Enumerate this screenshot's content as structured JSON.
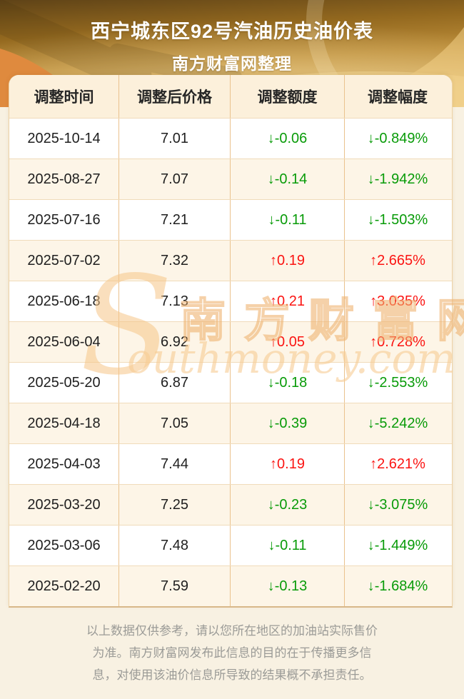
{
  "header": {
    "title": "西宁城东区92号汽油历史油价表",
    "subtitle": "南方财富网整理"
  },
  "table": {
    "columns": [
      "调整时间",
      "调整后价格",
      "调整额度",
      "调整幅度"
    ],
    "rows": [
      {
        "date": "2025-10-14",
        "price": "7.01",
        "change": "↓-0.06",
        "percent": "↓-0.849%",
        "direction": "down"
      },
      {
        "date": "2025-08-27",
        "price": "7.07",
        "change": "↓-0.14",
        "percent": "↓-1.942%",
        "direction": "down"
      },
      {
        "date": "2025-07-16",
        "price": "7.21",
        "change": "↓-0.11",
        "percent": "↓-1.503%",
        "direction": "down"
      },
      {
        "date": "2025-07-02",
        "price": "7.32",
        "change": "↑0.19",
        "percent": "↑2.665%",
        "direction": "up"
      },
      {
        "date": "2025-06-18",
        "price": "7.13",
        "change": "↑0.21",
        "percent": "↑3.035%",
        "direction": "up"
      },
      {
        "date": "2025-06-04",
        "price": "6.92",
        "change": "↑0.05",
        "percent": "↑0.728%",
        "direction": "up"
      },
      {
        "date": "2025-05-20",
        "price": "6.87",
        "change": "↓-0.18",
        "percent": "↓-2.553%",
        "direction": "down"
      },
      {
        "date": "2025-04-18",
        "price": "7.05",
        "change": "↓-0.39",
        "percent": "↓-5.242%",
        "direction": "down"
      },
      {
        "date": "2025-04-03",
        "price": "7.44",
        "change": "↑0.19",
        "percent": "↑2.621%",
        "direction": "up"
      },
      {
        "date": "2025-03-20",
        "price": "7.25",
        "change": "↓-0.23",
        "percent": "↓-3.075%",
        "direction": "down"
      },
      {
        "date": "2025-03-06",
        "price": "7.48",
        "change": "↓-0.11",
        "percent": "↓-1.449%",
        "direction": "down"
      },
      {
        "date": "2025-02-20",
        "price": "7.59",
        "change": "↓-0.13",
        "percent": "↓-1.684%",
        "direction": "down"
      }
    ]
  },
  "watermark": {
    "initial": "S",
    "cn": "南方财富网",
    "en": "outhmoney.com"
  },
  "footer": {
    "lines": [
      "以上数据仅供参考，请以您所在地区的加油站实际售价",
      "为准。南方财富网发布此信息的目的在于传播更多信",
      "息，对使用该油价信息所导致的结果概不承担责任。"
    ]
  },
  "colors": {
    "up": "#fb1412",
    "down": "#089b08",
    "page_bg": "#f8f1e2",
    "header_cell_bg": "#fcf0db",
    "row_alt_bg": "#fdf5e7",
    "cell_border": "#eac28e"
  }
}
